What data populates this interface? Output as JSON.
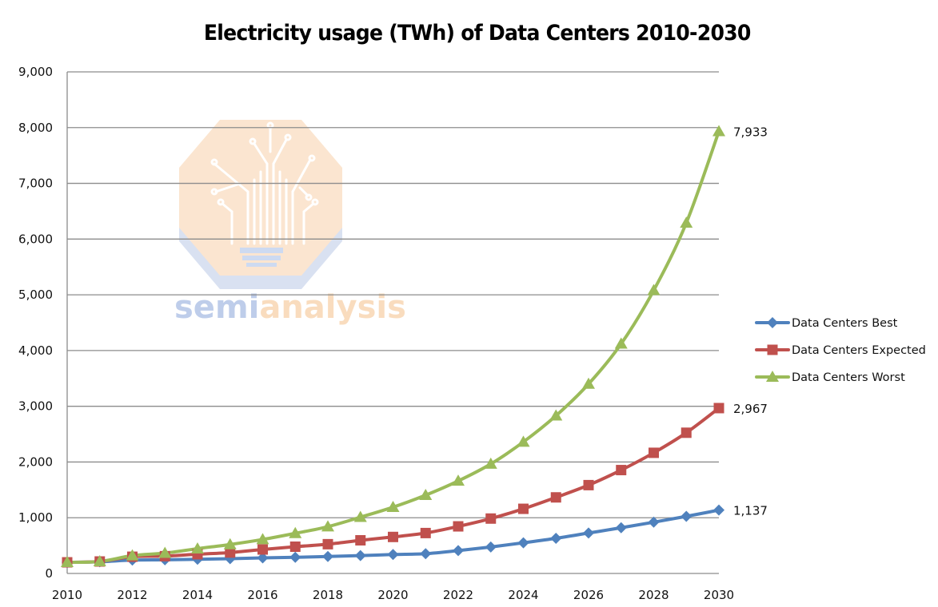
{
  "chart_data": {
    "type": "line",
    "title": "Electricity usage (TWh) of Data Centers 2010-2030",
    "xlabel": "",
    "ylabel": "",
    "x": [
      2010,
      2011,
      2012,
      2013,
      2014,
      2015,
      2016,
      2017,
      2018,
      2019,
      2020,
      2021,
      2022,
      2023,
      2024,
      2025,
      2026,
      2027,
      2028,
      2029,
      2030
    ],
    "xlim": [
      2010,
      2030
    ],
    "ylim": [
      0,
      9000
    ],
    "x_ticks": [
      "2010",
      "2012",
      "2014",
      "2016",
      "2018",
      "2020",
      "2022",
      "2024",
      "2026",
      "2028",
      "2030"
    ],
    "y_ticks": [
      "0",
      "1,000",
      "2,000",
      "3,000",
      "4,000",
      "5,000",
      "6,000",
      "7,000",
      "8,000",
      "9,000"
    ],
    "grid": "horizontal",
    "smooth": true,
    "legend_position": "right",
    "series": [
      {
        "name": "Data Centers Best",
        "color": "#4F81BD",
        "marker": "diamond",
        "values": [
          200,
          210,
          240,
          245,
          255,
          265,
          280,
          290,
          305,
          320,
          340,
          355,
          410,
          475,
          550,
          630,
          725,
          820,
          920,
          1025,
          1137
        ],
        "end_label": "1,137"
      },
      {
        "name": "Data Centers Expected",
        "color": "#C0504D",
        "marker": "square",
        "values": [
          200,
          215,
          300,
          310,
          345,
          375,
          430,
          480,
          525,
          595,
          655,
          725,
          845,
          985,
          1160,
          1365,
          1585,
          1855,
          2165,
          2525,
          2967
        ],
        "end_label": "2,967"
      },
      {
        "name": "Data Centers Worst",
        "color": "#9BBB59",
        "marker": "triangle",
        "values": [
          200,
          215,
          320,
          365,
          445,
          520,
          610,
          720,
          840,
          1010,
          1190,
          1405,
          1660,
          1965,
          2360,
          2830,
          3400,
          4120,
          5080,
          6290,
          7933
        ],
        "end_label": "7,933"
      }
    ]
  },
  "watermark": {
    "text_part1": "semi",
    "text_part2": "analysis",
    "color_part1": "#B8C8E8",
    "color_part2": "#F9D9B8"
  },
  "colors": {
    "gridline": "#8C8C8C",
    "axis": "#8C8C8C"
  }
}
